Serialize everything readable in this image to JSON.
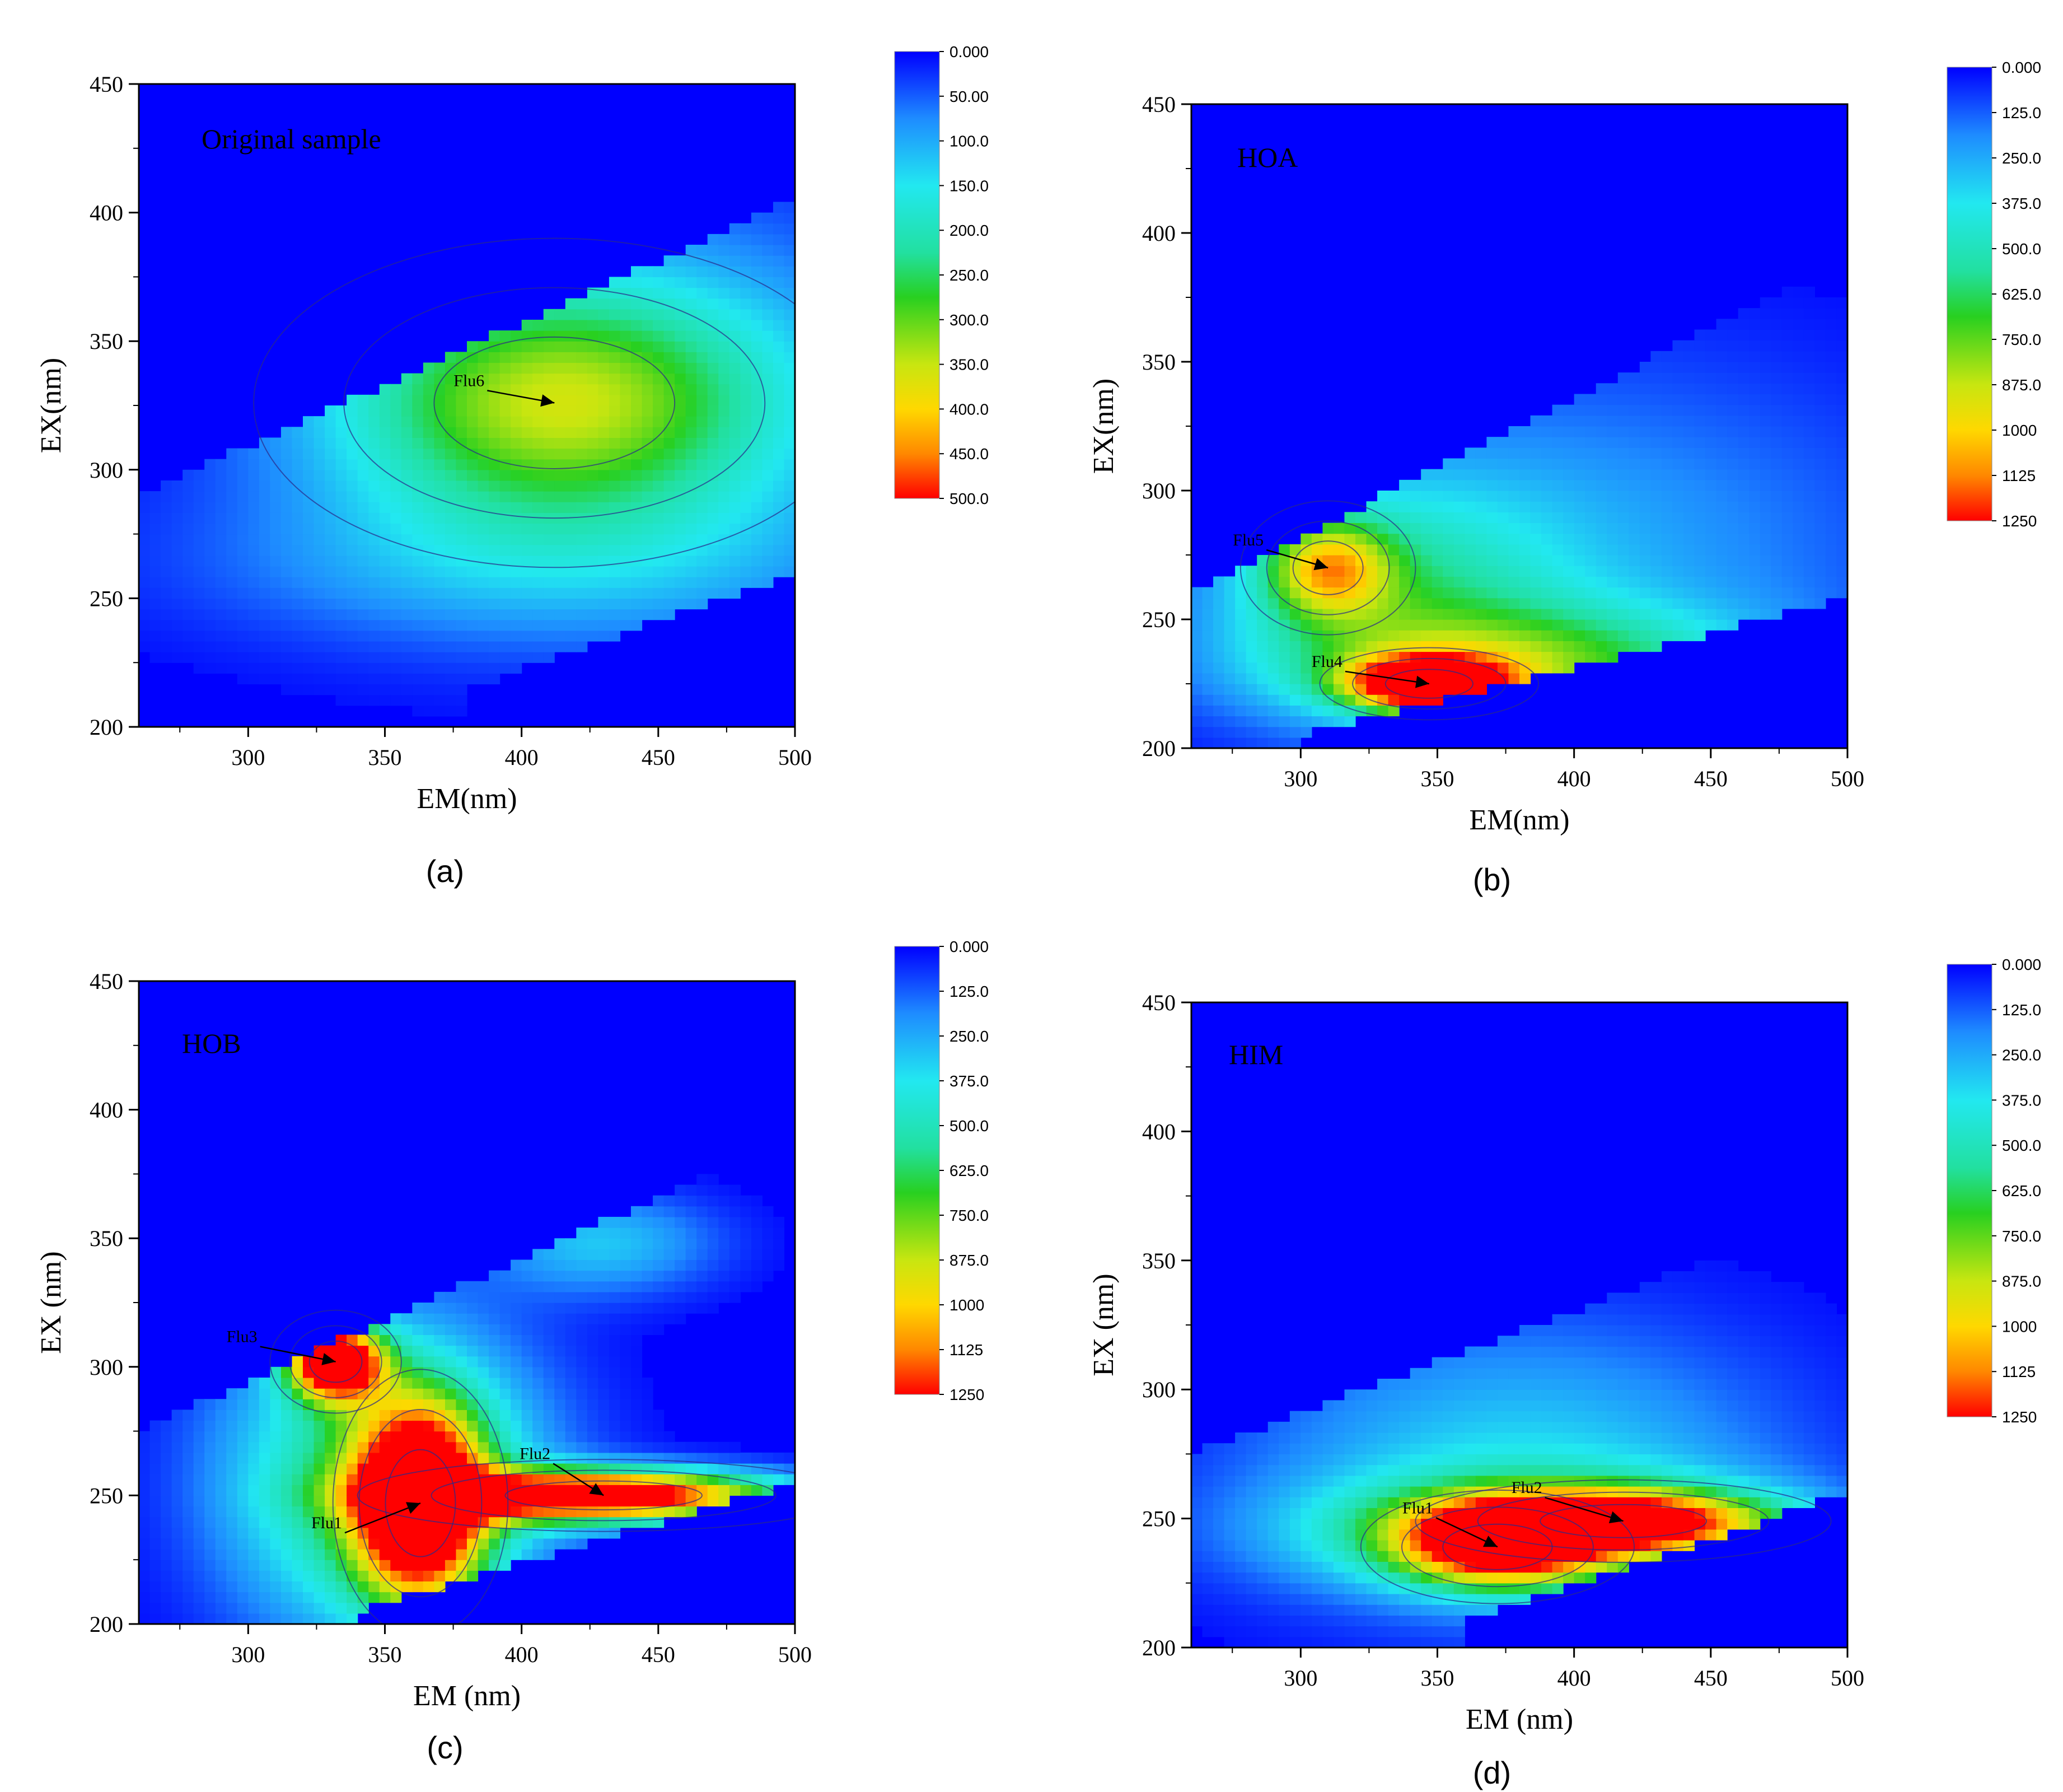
{
  "chart_data": [
    {
      "type": "heatmap",
      "panel": "(a)",
      "title": "Original sample",
      "xlabel": "EM(nm)",
      "ylabel": "EX(nm)",
      "xlim": [
        260,
        500
      ],
      "ylim": [
        200,
        450
      ],
      "xticks": [
        300,
        350,
        400,
        450,
        500
      ],
      "yticks": [
        200,
        250,
        300,
        350,
        400,
        450
      ],
      "colorbar": {
        "min": 0,
        "max": 500,
        "labels": [
          "0.000",
          "50.00",
          "100.0",
          "150.0",
          "200.0",
          "250.0",
          "300.0",
          "350.0",
          "400.0",
          "450.0",
          "500.0"
        ]
      },
      "diagonal": {
        "em": [
          260,
          500
        ],
        "ex": [
          290,
          405
        ]
      },
      "peaks": [
        {
          "label": "Flu6",
          "em": 412,
          "ex": 326,
          "intensity": 240,
          "sx": 55,
          "sy": 32
        }
      ],
      "background_peaks": [
        {
          "em": 430,
          "ex": 328,
          "intensity": 120,
          "sx": 85,
          "sy": 55
        },
        {
          "em": 400,
          "ex": 262,
          "intensity": 70,
          "sx": 90,
          "sy": 22
        }
      ],
      "lower_cutoff": {
        "em": [
          380,
          500
        ],
        "ex": [
          215,
          260
        ]
      }
    },
    {
      "type": "heatmap",
      "panel": "(b)",
      "title": "HOA",
      "xlabel": "EM(nm)",
      "ylabel": "EX(nm)",
      "xlim": [
        260,
        500
      ],
      "ylim": [
        200,
        450
      ],
      "xticks": [
        300,
        350,
        400,
        450,
        500
      ],
      "yticks": [
        200,
        250,
        300,
        350,
        400,
        450
      ],
      "colorbar": {
        "min": 0,
        "max": 1250,
        "labels": [
          "0.000",
          "125.0",
          "250.0",
          "375.0",
          "500.0",
          "625.0",
          "750.0",
          "875.0",
          "1000",
          "1125",
          "1250"
        ]
      },
      "diagonal": {
        "em": [
          260,
          500
        ],
        "ex": [
          260,
          390
        ]
      },
      "peaks": [
        {
          "label": "Flu5",
          "em": 310,
          "ex": 270,
          "intensity": 650,
          "sx": 16,
          "sy": 13
        },
        {
          "label": "Flu4",
          "em": 347,
          "ex": 225,
          "intensity": 1250,
          "sx": 20,
          "sy": 7
        }
      ],
      "background_peaks": [
        {
          "em": 380,
          "ex": 232,
          "intensity": 560,
          "sx": 60,
          "sy": 16
        },
        {
          "em": 330,
          "ex": 262,
          "intensity": 380,
          "sx": 45,
          "sy": 30
        },
        {
          "em": 400,
          "ex": 275,
          "intensity": 230,
          "sx": 90,
          "sy": 55
        }
      ],
      "lower_cutoff": {
        "em": [
          300,
          500
        ],
        "ex": [
          205,
          258
        ]
      }
    },
    {
      "type": "heatmap",
      "panel": "(c)",
      "title": "HOB",
      "xlabel": "EM (nm)",
      "ylabel": "EX (nm)",
      "xlim": [
        260,
        500
      ],
      "ylim": [
        200,
        450
      ],
      "xticks": [
        300,
        350,
        400,
        450,
        500
      ],
      "yticks": [
        200,
        250,
        300,
        350,
        400,
        450
      ],
      "colorbar": {
        "min": 0,
        "max": 1250,
        "labels": [
          "0.000",
          "125.0",
          "250.0",
          "375.0",
          "500.0",
          "625.0",
          "750.0",
          "875.0",
          "1000",
          "1125",
          "1250"
        ]
      },
      "diagonal": {
        "em": [
          260,
          500
        ],
        "ex": [
          275,
          390
        ]
      },
      "peaks": [
        {
          "label": "Flu3",
          "em": 332,
          "ex": 302,
          "intensity": 1400,
          "sx": 12,
          "sy": 10
        },
        {
          "label": "Flu1",
          "em": 363,
          "ex": 247,
          "intensity": 1350,
          "sx": 16,
          "sy": 26
        },
        {
          "label": "Flu2",
          "em": 430,
          "ex": 250,
          "intensity": 1500,
          "sx": 45,
          "sy": 7
        }
      ],
      "background_peaks": [
        {
          "em": 350,
          "ex": 255,
          "intensity": 700,
          "sx": 40,
          "sy": 42
        },
        {
          "em": 430,
          "ex": 348,
          "intensity": 300,
          "sx": 30,
          "sy": 14
        }
      ],
      "lower_cutoff": {
        "em": [
          340,
          490
        ],
        "ex": [
          205,
          252
        ]
      }
    },
    {
      "type": "heatmap",
      "panel": "(d)",
      "title": "HIM",
      "xlabel": "EM (nm)",
      "ylabel": "EX (nm)",
      "xlim": [
        260,
        500
      ],
      "ylim": [
        200,
        450
      ],
      "xticks": [
        300,
        350,
        400,
        450,
        500
      ],
      "yticks": [
        200,
        250,
        300,
        350,
        400,
        450
      ],
      "colorbar": {
        "min": 0,
        "max": 1250,
        "labels": [
          "0.000",
          "125.0",
          "250.0",
          "375.0",
          "500.0",
          "625.0",
          "750.0",
          "875.0",
          "1000",
          "1125",
          "1250"
        ]
      },
      "diagonal": {
        "em": [
          260,
          500
        ],
        "ex": [
          275,
          370
        ]
      },
      "peaks": [
        {
          "label": "Flu1",
          "em": 372,
          "ex": 239,
          "intensity": 900,
          "sx": 25,
          "sy": 11
        },
        {
          "label": "Flu2",
          "em": 418,
          "ex": 249,
          "intensity": 940,
          "sx": 38,
          "sy": 8
        }
      ],
      "background_peaks": [
        {
          "em": 390,
          "ex": 245,
          "intensity": 620,
          "sx": 60,
          "sy": 15
        },
        {
          "em": 380,
          "ex": 270,
          "intensity": 330,
          "sx": 70,
          "sy": 40
        }
      ],
      "lower_cutoff": {
        "em": [
          360,
          500
        ],
        "ex": [
          210,
          260
        ]
      }
    }
  ]
}
